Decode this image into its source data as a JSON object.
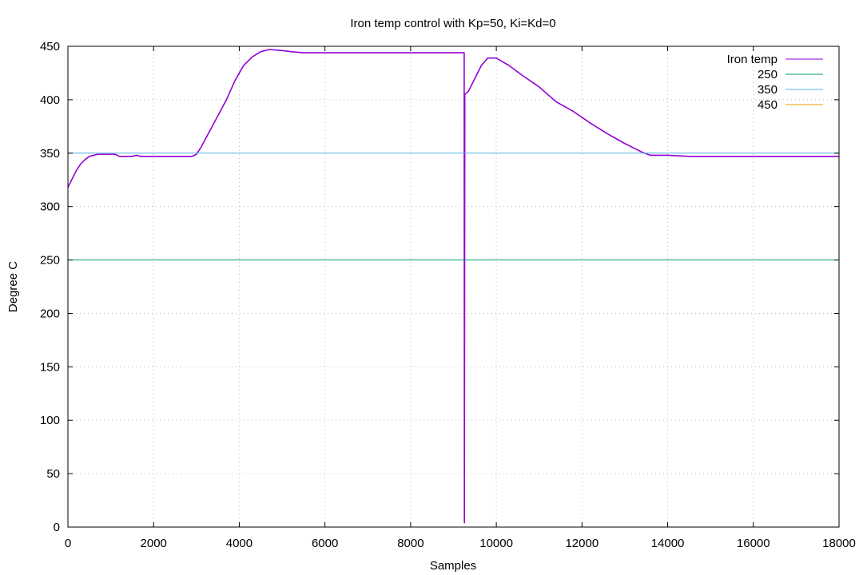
{
  "chart_data": {
    "type": "line",
    "title": "Iron temp control with Kp=50, Ki=Kd=0",
    "xlabel": "Samples",
    "ylabel": "Degree C",
    "xlim": [
      0,
      18000
    ],
    "ylim": [
      0,
      450
    ],
    "x_ticks": [
      "0",
      "2000",
      "4000",
      "6000",
      "8000",
      "10000",
      "12000",
      "14000",
      "16000",
      "18000"
    ],
    "y_ticks": [
      "0",
      "50",
      "100",
      "150",
      "200",
      "250",
      "300",
      "350",
      "400",
      "450"
    ],
    "grid": true,
    "legend_position": "top-right",
    "series": [
      {
        "name": "Iron temp",
        "color": "#9400d3",
        "points": [
          [
            0,
            318
          ],
          [
            100,
            326
          ],
          [
            200,
            334
          ],
          [
            300,
            340
          ],
          [
            400,
            344
          ],
          [
            500,
            347
          ],
          [
            600,
            348
          ],
          [
            700,
            349
          ],
          [
            1100,
            349
          ],
          [
            1200,
            347
          ],
          [
            1500,
            347
          ],
          [
            1600,
            348
          ],
          [
            1700,
            347
          ],
          [
            2000,
            347
          ],
          [
            2300,
            347
          ],
          [
            2500,
            347
          ],
          [
            2900,
            347
          ],
          [
            3000,
            349
          ],
          [
            3100,
            355
          ],
          [
            3300,
            370
          ],
          [
            3500,
            385
          ],
          [
            3700,
            400
          ],
          [
            3900,
            418
          ],
          [
            4100,
            432
          ],
          [
            4300,
            440
          ],
          [
            4500,
            445
          ],
          [
            4700,
            447
          ],
          [
            5000,
            446
          ],
          [
            5200,
            445
          ],
          [
            5500,
            444
          ],
          [
            6000,
            444
          ],
          [
            7000,
            444
          ],
          [
            8000,
            444
          ],
          [
            9000,
            444
          ],
          [
            9250,
            444
          ],
          [
            9255,
            4
          ],
          [
            9265,
            405
          ],
          [
            9350,
            408
          ],
          [
            9500,
            420
          ],
          [
            9650,
            432
          ],
          [
            9800,
            439
          ],
          [
            10000,
            439
          ],
          [
            10300,
            432
          ],
          [
            10600,
            423
          ],
          [
            11000,
            412
          ],
          [
            11400,
            398
          ],
          [
            11800,
            389
          ],
          [
            12200,
            378
          ],
          [
            12600,
            368
          ],
          [
            13000,
            359
          ],
          [
            13400,
            351
          ],
          [
            13600,
            348
          ],
          [
            14000,
            348
          ],
          [
            14500,
            347
          ],
          [
            15000,
            347
          ],
          [
            15500,
            347
          ],
          [
            16000,
            347
          ],
          [
            16500,
            347
          ],
          [
            17000,
            347
          ],
          [
            17500,
            347
          ],
          [
            18000,
            347
          ]
        ]
      },
      {
        "name": "250",
        "color": "#009e73",
        "value": 250
      },
      {
        "name": "350",
        "color": "#56b4e9",
        "value": 350
      },
      {
        "name": "450",
        "color": "#e69f00",
        "value": 450
      }
    ]
  }
}
